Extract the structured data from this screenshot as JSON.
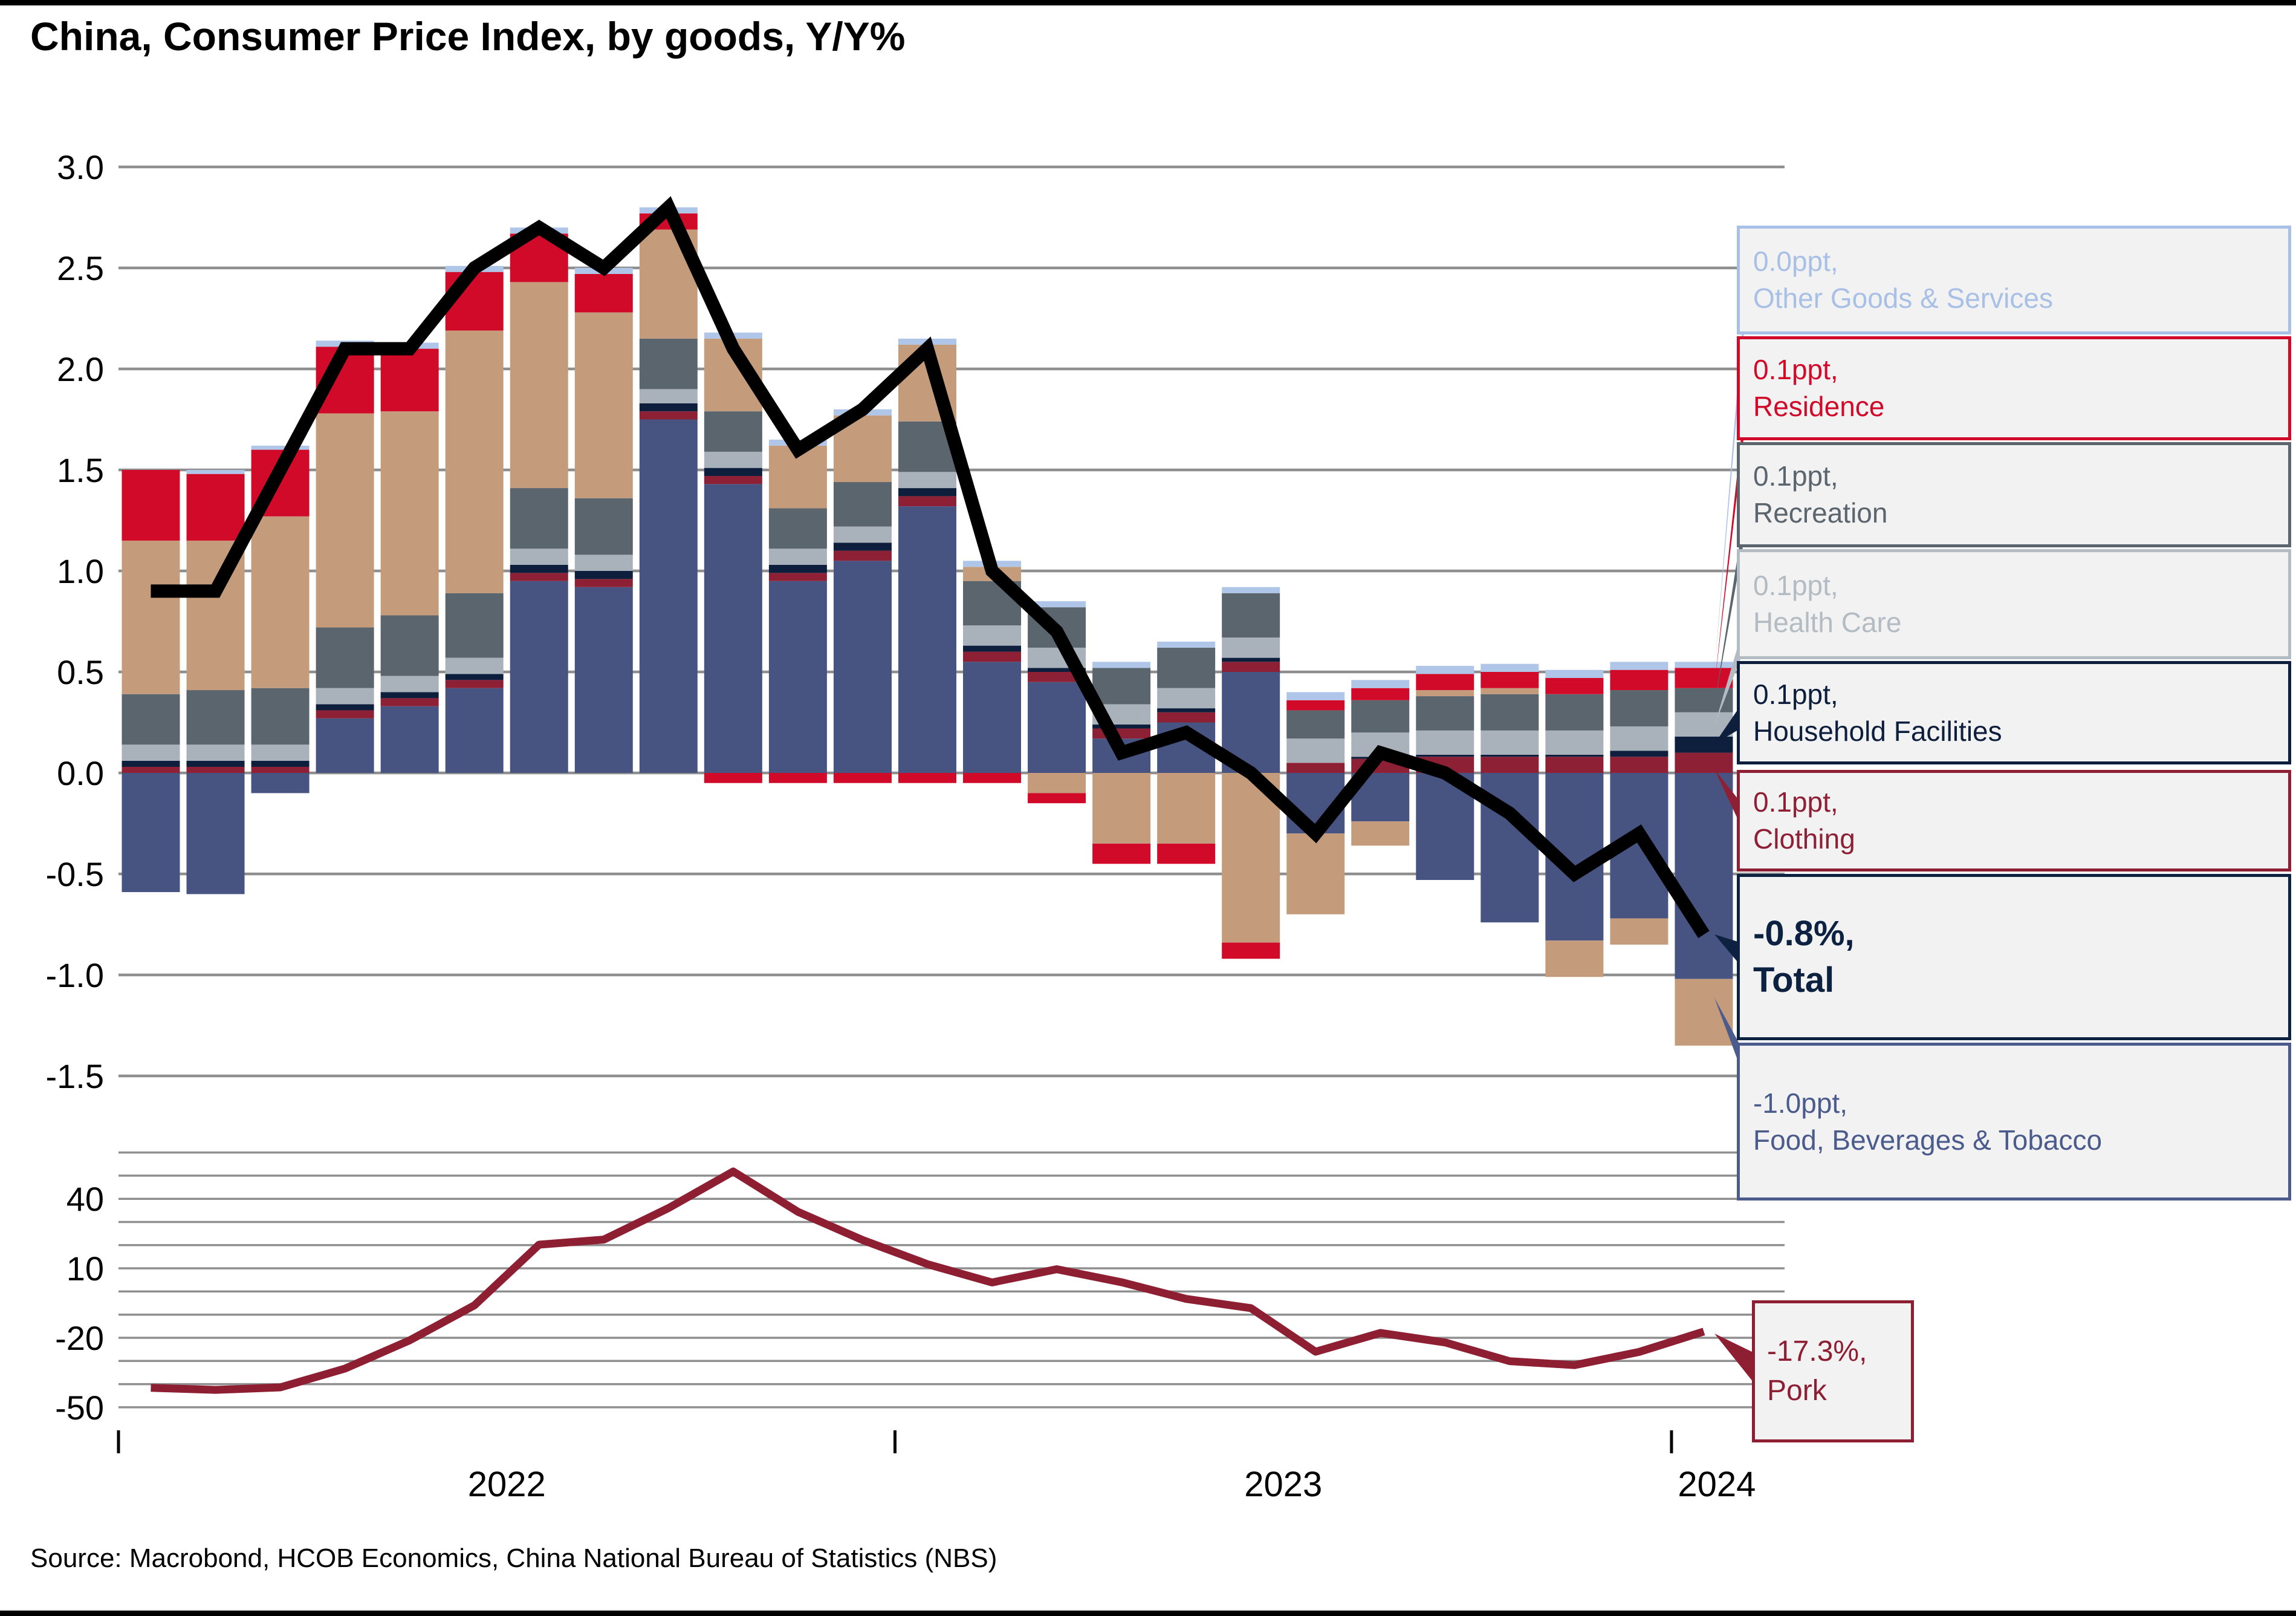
{
  "title": "China, Consumer Price Index, by goods, Y/Y%",
  "source": "Source: Macrobond, HCOB Economics, China National Bureau of Statistics (NBS)",
  "colors": {
    "background": "#ffffff",
    "grid": "#8f8f8f",
    "total_line": "#000000",
    "pork_line": "#8e1f33",
    "food": "#475380",
    "clothing": "#8e2036",
    "household_facilities": "#0d1f3c",
    "health_care": "#a9b2bb",
    "recreation": "#5a656d",
    "transport_communication": "#c49c7c",
    "residence": "#d20a2a",
    "other_goods_services": "#b0c6e8",
    "callout_fill": "#f2f2f3"
  },
  "x_axis": {
    "year_labels": [
      "2022",
      "2023",
      "2024"
    ],
    "tick_months": [
      "Jan 2022",
      "Jan 2023",
      "Jan 2024"
    ]
  },
  "chart_data": [
    {
      "type": "bar",
      "stacked": true,
      "title": "Contributions to China CPI by goods, Y/Y ppt, with total CPI line",
      "ylim": [
        -1.5,
        3.0
      ],
      "ytick_step": 0.5,
      "grid": true,
      "legend_position": "right-callouts",
      "x": [
        "Jan 2022",
        "Feb 2022",
        "Mar 2022",
        "Apr 2022",
        "May 2022",
        "Jun 2022",
        "Jul 2022",
        "Aug 2022",
        "Sep 2022",
        "Oct 2022",
        "Nov 2022",
        "Dec 2022",
        "Jan 2023",
        "Feb 2023",
        "Mar 2023",
        "Apr 2023",
        "May 2023",
        "Jun 2023",
        "Jul 2023",
        "Aug 2023",
        "Sep 2023",
        "Oct 2023",
        "Nov 2023",
        "Dec 2023",
        "Jan 2024"
      ],
      "series": [
        {
          "name": "Food, Beverages & Tobacco",
          "color": "#475380",
          "values": [
            -0.59,
            -0.6,
            -0.1,
            0.27,
            0.33,
            0.42,
            0.95,
            0.92,
            1.75,
            1.43,
            0.95,
            1.05,
            1.32,
            0.55,
            0.45,
            0.17,
            0.25,
            0.5,
            -0.3,
            -0.24,
            -0.53,
            -0.74,
            -0.83,
            -0.72,
            -1.02
          ]
        },
        {
          "name": "Clothing",
          "color": "#8e2036",
          "values": [
            0.03,
            0.03,
            0.03,
            0.04,
            0.04,
            0.04,
            0.04,
            0.04,
            0.04,
            0.04,
            0.04,
            0.05,
            0.05,
            0.05,
            0.05,
            0.05,
            0.05,
            0.05,
            0.05,
            0.07,
            0.08,
            0.08,
            0.08,
            0.08,
            0.1
          ]
        },
        {
          "name": "Household Facilities",
          "color": "#0d1f3c",
          "values": [
            0.03,
            0.03,
            0.03,
            0.03,
            0.03,
            0.03,
            0.04,
            0.04,
            0.04,
            0.04,
            0.04,
            0.04,
            0.04,
            0.03,
            0.02,
            0.02,
            0.02,
            0.02,
            0.0,
            0.01,
            0.01,
            0.01,
            0.01,
            0.03,
            0.08
          ]
        },
        {
          "name": "Health Care",
          "color": "#a9b2bb",
          "values": [
            0.08,
            0.08,
            0.08,
            0.08,
            0.08,
            0.08,
            0.08,
            0.08,
            0.07,
            0.08,
            0.08,
            0.08,
            0.08,
            0.1,
            0.1,
            0.1,
            0.1,
            0.1,
            0.12,
            0.12,
            0.12,
            0.12,
            0.12,
            0.12,
            0.12
          ]
        },
        {
          "name": "Recreation",
          "color": "#5a656d",
          "values": [
            0.25,
            0.27,
            0.28,
            0.3,
            0.3,
            0.32,
            0.3,
            0.28,
            0.25,
            0.2,
            0.2,
            0.22,
            0.25,
            0.22,
            0.2,
            0.18,
            0.2,
            0.22,
            0.14,
            0.16,
            0.17,
            0.18,
            0.18,
            0.18,
            0.12
          ]
        },
        {
          "name": "Transport & Communication",
          "color": "#c49c7c",
          "values": [
            0.76,
            0.74,
            0.85,
            1.06,
            1.01,
            1.3,
            1.02,
            0.92,
            0.54,
            0.36,
            0.31,
            0.33,
            0.38,
            0.07,
            -0.1,
            -0.35,
            -0.35,
            -0.84,
            -0.4,
            -0.12,
            0.03,
            0.03,
            -0.18,
            -0.13,
            -0.33
          ]
        },
        {
          "name": "Residence",
          "color": "#d20a2a",
          "values": [
            0.35,
            0.33,
            0.33,
            0.33,
            0.31,
            0.29,
            0.24,
            0.19,
            0.08,
            -0.05,
            -0.05,
            -0.05,
            -0.05,
            -0.05,
            -0.05,
            -0.1,
            -0.1,
            -0.08,
            0.05,
            0.06,
            0.08,
            0.08,
            0.08,
            0.1,
            0.1
          ]
        },
        {
          "name": "Other Goods & Services",
          "color": "#b0c6e8",
          "values": [
            0.0,
            0.02,
            0.02,
            0.03,
            0.03,
            0.03,
            0.03,
            0.03,
            0.03,
            0.03,
            0.03,
            0.03,
            0.03,
            0.03,
            0.03,
            0.03,
            0.03,
            0.03,
            0.04,
            0.04,
            0.04,
            0.04,
            0.04,
            0.04,
            0.03
          ]
        }
      ],
      "line_series": {
        "name": "Total",
        "color": "#000000",
        "values": [
          0.9,
          0.9,
          1.5,
          2.1,
          2.1,
          2.5,
          2.7,
          2.5,
          2.8,
          2.1,
          1.6,
          1.8,
          2.1,
          1.0,
          0.7,
          0.1,
          0.2,
          0.0,
          -0.3,
          0.1,
          0.0,
          -0.2,
          -0.5,
          -0.3,
          -0.8
        ]
      }
    },
    {
      "type": "line",
      "title": "Pork price, Y/Y%",
      "ylim": [
        -55,
        60
      ],
      "ytick_labels": [
        40,
        10,
        -20,
        -50
      ],
      "gridline_step": 10,
      "grid": true,
      "x": [
        "Jan 2022",
        "Feb 2022",
        "Mar 2022",
        "Apr 2022",
        "May 2022",
        "Jun 2022",
        "Jul 2022",
        "Aug 2022",
        "Sep 2022",
        "Oct 2022",
        "Nov 2022",
        "Dec 2022",
        "Jan 2023",
        "Feb 2023",
        "Mar 2023",
        "Apr 2023",
        "May 2023",
        "Jun 2023",
        "Jul 2023",
        "Aug 2023",
        "Sep 2023",
        "Oct 2023",
        "Nov 2023",
        "Dec 2023",
        "Jan 2024"
      ],
      "series": [
        {
          "name": "Pork",
          "color": "#8e1f33",
          "values": [
            -41.6,
            -42.5,
            -41.4,
            -33.3,
            -21.1,
            -6.0,
            20.2,
            22.4,
            36.0,
            51.8,
            34.4,
            22.2,
            11.8,
            3.9,
            9.6,
            4.0,
            -3.2,
            -7.2,
            -26.0,
            -17.9,
            -22.0,
            -30.1,
            -31.8,
            -26.1,
            -17.3
          ]
        }
      ]
    }
  ],
  "legend_callouts": [
    {
      "value": "0.0ppt,",
      "label": "Other Goods & Services",
      "color": "#a9c0e6"
    },
    {
      "value": "0.1ppt,",
      "label": "Residence",
      "color": "#d20a2a"
    },
    {
      "value": "0.1ppt,",
      "label": "Recreation",
      "color": "#5a656d"
    },
    {
      "value": "0.1ppt,",
      "label": "Health Care",
      "color": "#b3bcc3"
    },
    {
      "value": "0.1ppt,",
      "label": "Household Facilities",
      "color": "#0d1f3c"
    },
    {
      "value": "0.1ppt,",
      "label": "Clothing",
      "color": "#8e2036"
    },
    {
      "value": "-0.8%,",
      "label": "Total",
      "color": "#0d2240",
      "bold": true
    },
    {
      "value": "-1.0ppt,",
      "label": "Food, Beverages & Tobacco",
      "color": "#4a5b8c"
    }
  ],
  "pork_callout": {
    "value": "-17.3%,",
    "label": "Pork",
    "color": "#8e1f33"
  }
}
